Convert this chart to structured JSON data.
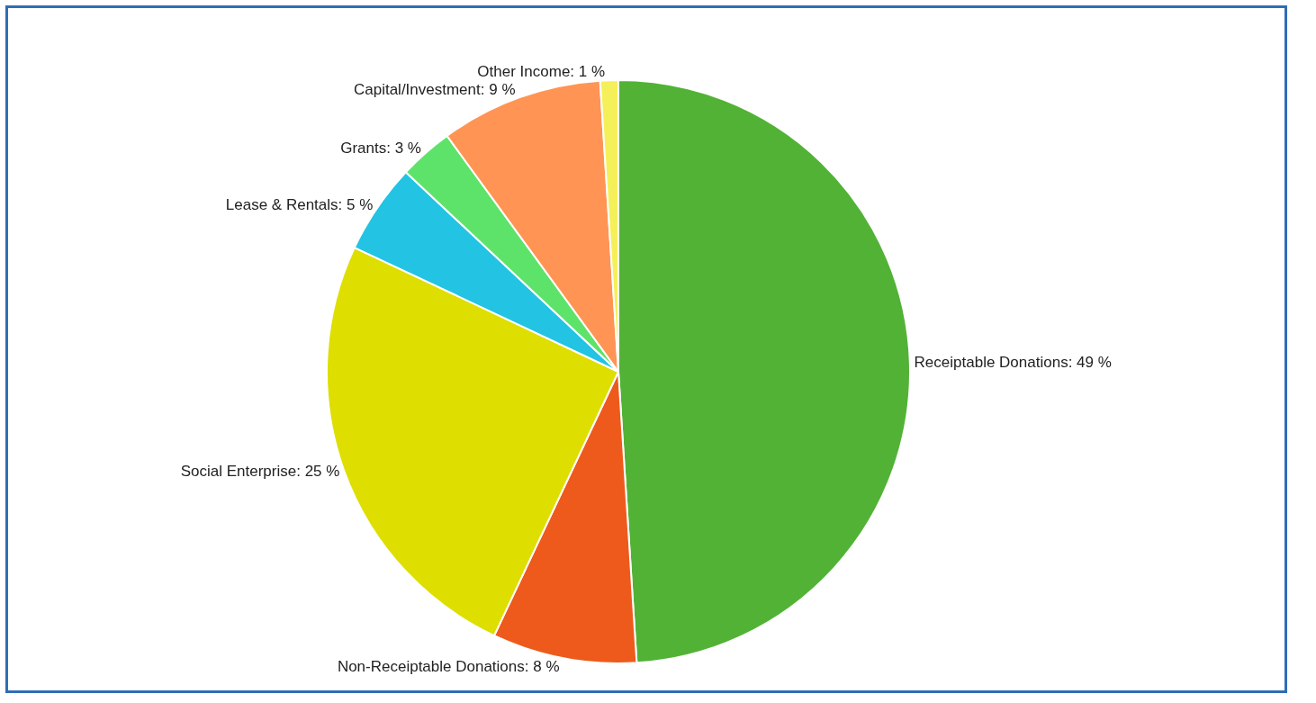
{
  "chart_data": {
    "type": "pie",
    "categories": [
      "Receiptable Donations",
      "Non-Receiptable Donations",
      "Social Enterprise",
      "Lease & Rentals",
      "Grants",
      "Capital/Investment",
      "Other Income"
    ],
    "values": [
      49,
      8,
      25,
      5,
      3,
      9,
      1
    ],
    "value_labels": [
      "49 %",
      "8 %",
      "25 %",
      "5 %",
      "3 %",
      "9 %",
      "1 %"
    ],
    "colors": [
      "#52b236",
      "#ee5a1c",
      "#dede00",
      "#23c3e3",
      "#5ee36a",
      "#ff9455",
      "#f5f05a"
    ],
    "legend": false
  }
}
